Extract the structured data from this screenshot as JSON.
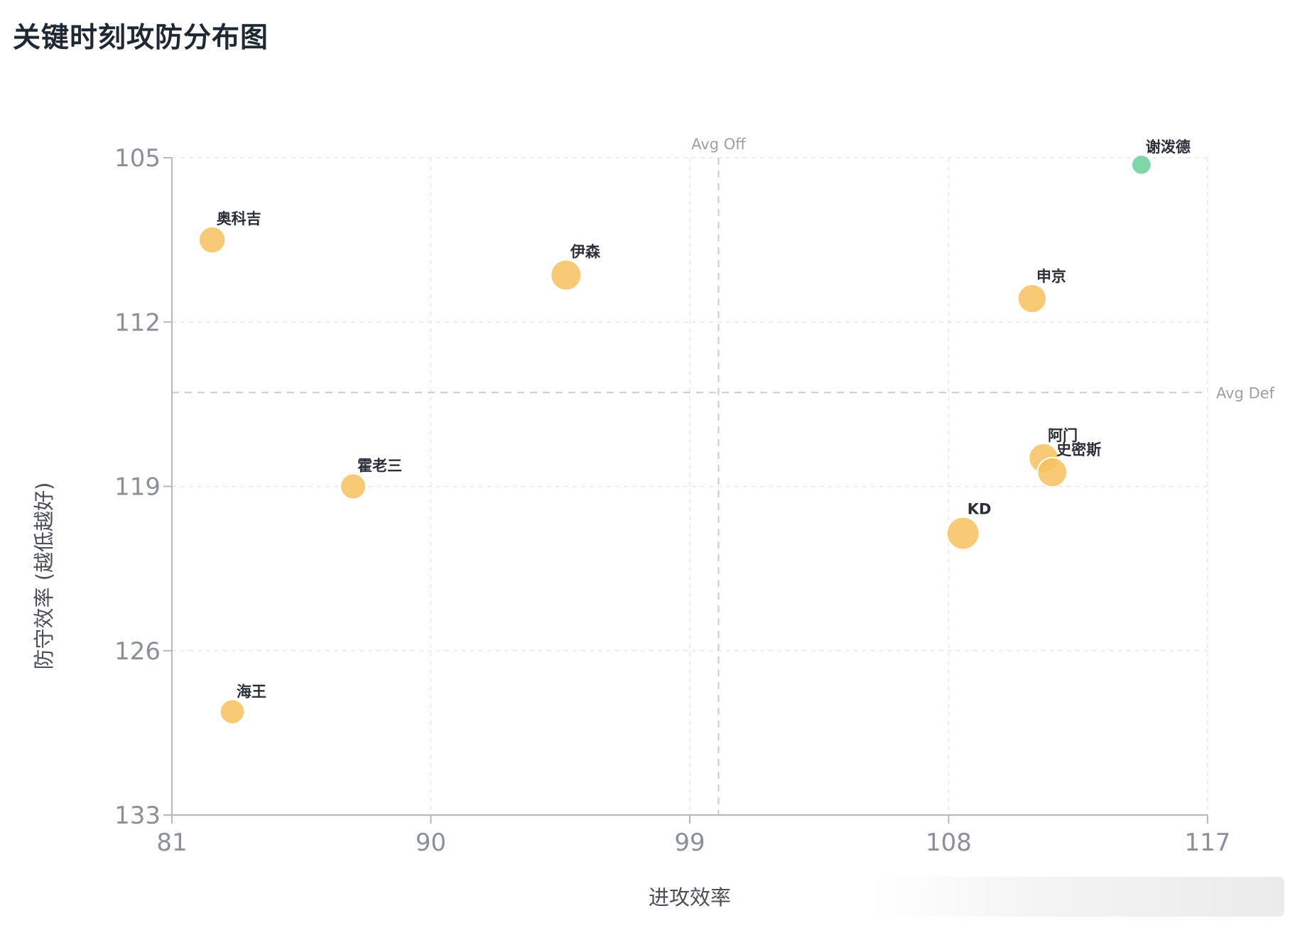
{
  "title": "关键时刻攻防分布图",
  "colors": {
    "point_default": "#f7c15e",
    "point_highlight": "#6fd3a0",
    "grid": "#e6e8ec",
    "axis": "#b4b8c0",
    "ref_line": "#c8ccd2"
  },
  "chart_data": {
    "type": "scatter",
    "title": "关键时刻攻防分布图",
    "xlabel": "进攻效率",
    "ylabel": "防守效率 (越低越好)",
    "xlim": [
      81,
      117
    ],
    "ylim": [
      133,
      105
    ],
    "y_inverted": true,
    "xticks": [
      81,
      90,
      99,
      108,
      117
    ],
    "yticks": [
      105,
      112,
      119,
      126,
      133
    ],
    "grid": true,
    "reference_lines": [
      {
        "axis": "x",
        "value": 100,
        "label": "Avg Off"
      },
      {
        "axis": "y",
        "value": 115,
        "label": "Avg Def"
      }
    ],
    "points": [
      {
        "name": "奥科吉",
        "x": 82.4,
        "y": 108.5,
        "size": 0.55,
        "highlight": false
      },
      {
        "name": "伊森",
        "x": 94.7,
        "y": 110.0,
        "size": 0.75,
        "highlight": false
      },
      {
        "name": "申京",
        "x": 110.9,
        "y": 111.0,
        "size": 0.65,
        "highlight": false
      },
      {
        "name": "谢泼德",
        "x": 114.7,
        "y": 105.3,
        "size": 0.2,
        "highlight": true
      },
      {
        "name": "阿门",
        "x": 111.3,
        "y": 117.8,
        "size": 0.7,
        "highlight": false
      },
      {
        "name": "史密斯",
        "x": 111.6,
        "y": 118.4,
        "size": 0.7,
        "highlight": false
      },
      {
        "name": "霍老三",
        "x": 87.3,
        "y": 119.0,
        "size": 0.5,
        "highlight": false
      },
      {
        "name": "KD",
        "x": 108.5,
        "y": 121.0,
        "size": 0.85,
        "highlight": false
      },
      {
        "name": "海王",
        "x": 83.1,
        "y": 128.6,
        "size": 0.45,
        "highlight": false
      }
    ]
  }
}
